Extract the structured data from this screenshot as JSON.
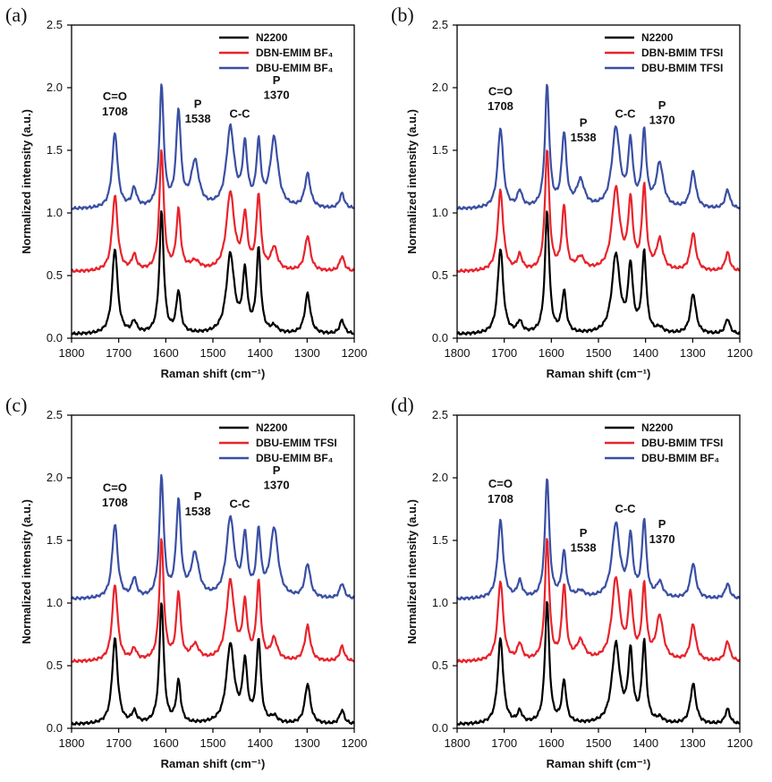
{
  "chart_data": [
    {
      "panel": "(a)",
      "type": "line",
      "xlabel": "Raman shift (cm⁻¹)",
      "ylabel": "Normalized intensity (a.u.)",
      "xlim": [
        1800,
        1200
      ],
      "ylim": [
        0,
        2.5
      ],
      "xticks": [
        1800,
        1700,
        1600,
        1500,
        1400,
        1300,
        1200
      ],
      "yticks": [
        0.0,
        0.5,
        1.0,
        1.5,
        2.0,
        2.5
      ],
      "legend_position": "top-right",
      "series": [
        {
          "name": "N2200",
          "color": "#000000",
          "offset": 0.0,
          "baseline": 0.03,
          "peaks": [
            [
              1708,
              0.68,
              7
            ],
            [
              1667,
              0.09,
              6
            ],
            [
              1609,
              0.97,
              5.5
            ],
            [
              1573,
              0.33,
              5.5
            ],
            [
              1463,
              0.63,
              10
            ],
            [
              1432,
              0.47,
              6
            ],
            [
              1403,
              0.66,
              5.5
            ],
            [
              1370,
              0.05,
              8
            ],
            [
              1299,
              0.32,
              7
            ],
            [
              1226,
              0.11,
              6
            ]
          ]
        },
        {
          "name": "DBN-EMIM BF4",
          "color": "#e8232b",
          "offset": 0.5,
          "baseline": 0.03,
          "peaks": [
            [
              1708,
              0.6,
              7
            ],
            [
              1667,
              0.12,
              6
            ],
            [
              1609,
              0.96,
              5.5
            ],
            [
              1573,
              0.47,
              5.5
            ],
            [
              1538,
              0.07,
              12
            ],
            [
              1463,
              0.62,
              10
            ],
            [
              1432,
              0.42,
              6
            ],
            [
              1403,
              0.59,
              5.5
            ],
            [
              1370,
              0.18,
              8
            ],
            [
              1299,
              0.28,
              7
            ],
            [
              1226,
              0.12,
              6
            ]
          ]
        },
        {
          "name": "DBU-EMIM BF4",
          "color": "#3a4fa3",
          "offset": 1.0,
          "baseline": 0.03,
          "peaks": [
            [
              1708,
              0.6,
              7
            ],
            [
              1667,
              0.15,
              6
            ],
            [
              1609,
              0.96,
              5.5
            ],
            [
              1573,
              0.75,
              6
            ],
            [
              1538,
              0.36,
              10
            ],
            [
              1463,
              0.63,
              10
            ],
            [
              1432,
              0.47,
              6
            ],
            [
              1403,
              0.49,
              5.5
            ],
            [
              1370,
              0.55,
              10
            ],
            [
              1299,
              0.27,
              7
            ],
            [
              1226,
              0.12,
              6
            ]
          ]
        }
      ],
      "legend": [
        "N2200",
        "DBN-EMIM BF₄",
        "DBU-EMIM BF₄"
      ],
      "annotations": {
        "co_label": "C=O",
        "co_value": "1708",
        "p1_label": "P",
        "p1_value": "1538",
        "cc_label": "C-C",
        "p2_label": "P",
        "p2_value": "1370"
      }
    },
    {
      "panel": "(b)",
      "type": "line",
      "xlabel": "Raman shift (cm⁻¹)",
      "ylabel": "Normalized intensity (a.u.)",
      "xlim": [
        1800,
        1200
      ],
      "ylim": [
        0,
        2.5
      ],
      "xticks": [
        1800,
        1700,
        1600,
        1500,
        1400,
        1300,
        1200
      ],
      "yticks": [
        0.0,
        0.5,
        1.0,
        1.5,
        2.0,
        2.5
      ],
      "legend_position": "top-right",
      "series": [
        {
          "name": "N2200",
          "color": "#000000",
          "offset": 0.0,
          "baseline": 0.03,
          "peaks": [
            [
              1708,
              0.68,
              7
            ],
            [
              1667,
              0.09,
              6
            ],
            [
              1609,
              0.97,
              5.5
            ],
            [
              1573,
              0.33,
              5.5
            ],
            [
              1463,
              0.63,
              10
            ],
            [
              1432,
              0.52,
              6
            ],
            [
              1403,
              0.64,
              5.5
            ],
            [
              1370,
              0.04,
              8
            ],
            [
              1299,
              0.32,
              7
            ],
            [
              1226,
              0.12,
              6
            ]
          ]
        },
        {
          "name": "DBN-BMIM TFSI",
          "color": "#e8232b",
          "offset": 0.5,
          "baseline": 0.03,
          "peaks": [
            [
              1708,
              0.64,
              7
            ],
            [
              1667,
              0.12,
              6
            ],
            [
              1609,
              0.96,
              5.5
            ],
            [
              1573,
              0.5,
              5.5
            ],
            [
              1538,
              0.1,
              10
            ],
            [
              1463,
              0.65,
              10
            ],
            [
              1432,
              0.53,
              6
            ],
            [
              1403,
              0.66,
              5.5
            ],
            [
              1370,
              0.24,
              8
            ],
            [
              1299,
              0.3,
              7
            ],
            [
              1226,
              0.15,
              6
            ]
          ]
        },
        {
          "name": "DBU-BMIM TFSI",
          "color": "#3a4fa3",
          "offset": 1.0,
          "baseline": 0.03,
          "peaks": [
            [
              1708,
              0.64,
              7
            ],
            [
              1667,
              0.13,
              6
            ],
            [
              1609,
              0.97,
              5.5
            ],
            [
              1573,
              0.58,
              6
            ],
            [
              1538,
              0.21,
              10
            ],
            [
              1463,
              0.63,
              10
            ],
            [
              1432,
              0.5,
              6
            ],
            [
              1403,
              0.59,
              5.5
            ],
            [
              1370,
              0.35,
              9
            ],
            [
              1299,
              0.29,
              7
            ],
            [
              1226,
              0.15,
              6
            ]
          ]
        }
      ],
      "legend": [
        "N2200",
        "DBN-BMIM TFSI",
        "DBU-BMIM TFSI"
      ],
      "annotations": {
        "co_label": "C=O",
        "co_value": "1708",
        "p1_label": "P",
        "p1_value": "1538",
        "cc_label": "C-C",
        "p2_label": "P",
        "p2_value": "1370"
      }
    },
    {
      "panel": "(c)",
      "type": "line",
      "xlabel": "Raman shift (cm⁻¹)",
      "ylabel": "Normalized intensity (a.u.)",
      "xlim": [
        1800,
        1200
      ],
      "ylim": [
        0,
        2.5
      ],
      "xticks": [
        1800,
        1700,
        1600,
        1500,
        1400,
        1300,
        1200
      ],
      "yticks": [
        0.0,
        0.5,
        1.0,
        1.5,
        2.0,
        2.5
      ],
      "legend_position": "top-right",
      "series": [
        {
          "name": "N2200",
          "color": "#000000",
          "offset": 0.0,
          "baseline": 0.03,
          "peaks": [
            [
              1708,
              0.68,
              7
            ],
            [
              1667,
              0.09,
              6
            ],
            [
              1609,
              0.97,
              5.5
            ],
            [
              1573,
              0.33,
              5.5
            ],
            [
              1463,
              0.63,
              10
            ],
            [
              1432,
              0.47,
              6
            ],
            [
              1403,
              0.66,
              5.5
            ],
            [
              1370,
              0.05,
              8
            ],
            [
              1299,
              0.32,
              7
            ],
            [
              1226,
              0.11,
              6
            ]
          ]
        },
        {
          "name": "DBU-EMIM TFSI",
          "color": "#e8232b",
          "offset": 0.5,
          "baseline": 0.03,
          "peaks": [
            [
              1708,
              0.61,
              7
            ],
            [
              1667,
              0.09,
              6
            ],
            [
              1609,
              0.96,
              5.5
            ],
            [
              1573,
              0.53,
              5.5
            ],
            [
              1538,
              0.12,
              10
            ],
            [
              1463,
              0.63,
              10
            ],
            [
              1432,
              0.43,
              6
            ],
            [
              1403,
              0.61,
              5.5
            ],
            [
              1370,
              0.17,
              8
            ],
            [
              1299,
              0.28,
              7
            ],
            [
              1226,
              0.12,
              6
            ]
          ]
        },
        {
          "name": "DBU-EMIM BF4",
          "color": "#3a4fa3",
          "offset": 1.0,
          "baseline": 0.03,
          "peaks": [
            [
              1708,
              0.59,
              7
            ],
            [
              1667,
              0.15,
              6
            ],
            [
              1609,
              0.96,
              5.5
            ],
            [
              1573,
              0.75,
              6
            ],
            [
              1538,
              0.34,
              10
            ],
            [
              1463,
              0.63,
              10
            ],
            [
              1432,
              0.47,
              6
            ],
            [
              1403,
              0.5,
              5.5
            ],
            [
              1370,
              0.55,
              10
            ],
            [
              1299,
              0.27,
              7
            ],
            [
              1226,
              0.12,
              6
            ]
          ]
        }
      ],
      "legend": [
        "N2200",
        "DBU-EMIM TFSI",
        "DBU-EMIM BF₄"
      ],
      "annotations": {
        "co_label": "C=O",
        "co_value": "1708",
        "p1_label": "P",
        "p1_value": "1538",
        "cc_label": "C-C",
        "p2_label": "P",
        "p2_value": "1370"
      }
    },
    {
      "panel": "(d)",
      "type": "line",
      "xlabel": "Raman shift (cm⁻¹)",
      "ylabel": "Normalized intensity (a.u.)",
      "xlim": [
        1800,
        1200
      ],
      "ylim": [
        0,
        2.5
      ],
      "xticks": [
        1800,
        1700,
        1600,
        1500,
        1400,
        1300,
        1200
      ],
      "yticks": [
        0.0,
        0.5,
        1.0,
        1.5,
        2.0,
        2.5
      ],
      "legend_position": "top-right",
      "series": [
        {
          "name": "N2200",
          "color": "#000000",
          "offset": 0.0,
          "baseline": 0.03,
          "peaks": [
            [
              1708,
              0.68,
              7
            ],
            [
              1667,
              0.09,
              6
            ],
            [
              1609,
              0.97,
              5.5
            ],
            [
              1573,
              0.33,
              5.5
            ],
            [
              1463,
              0.63,
              10
            ],
            [
              1432,
              0.55,
              6
            ],
            [
              1403,
              0.64,
              5.5
            ],
            [
              1370,
              0.04,
              8
            ],
            [
              1299,
              0.32,
              7
            ],
            [
              1226,
              0.12,
              6
            ]
          ]
        },
        {
          "name": "DBU-BMIM TFSI",
          "color": "#e8232b",
          "offset": 0.5,
          "baseline": 0.03,
          "peaks": [
            [
              1708,
              0.64,
              7
            ],
            [
              1667,
              0.13,
              6
            ],
            [
              1609,
              0.96,
              5.5
            ],
            [
              1573,
              0.59,
              5.5
            ],
            [
              1538,
              0.15,
              10
            ],
            [
              1463,
              0.65,
              10
            ],
            [
              1432,
              0.49,
              6
            ],
            [
              1403,
              0.58,
              5.5
            ],
            [
              1370,
              0.35,
              9
            ],
            [
              1299,
              0.29,
              7
            ],
            [
              1226,
              0.16,
              6
            ]
          ]
        },
        {
          "name": "DBU-BMIM BF4",
          "color": "#3a4fa3",
          "offset": 1.0,
          "baseline": 0.03,
          "peaks": [
            [
              1708,
              0.62,
              7
            ],
            [
              1667,
              0.13,
              6
            ],
            [
              1609,
              0.96,
              5.5
            ],
            [
              1573,
              0.36,
              5.5
            ],
            [
              1538,
              0.05,
              10
            ],
            [
              1463,
              0.59,
              10
            ],
            [
              1432,
              0.47,
              6
            ],
            [
              1403,
              0.61,
              5.5
            ],
            [
              1370,
              0.12,
              8
            ],
            [
              1299,
              0.28,
              7
            ],
            [
              1226,
              0.12,
              6
            ]
          ]
        }
      ],
      "legend": [
        "N2200",
        "DBU-BMIM TFSI",
        "DBU-BMIM BF₄"
      ],
      "annotations": {
        "co_label": "C=O",
        "co_value": "1708",
        "p1_label": "P",
        "p1_value": "1538",
        "cc_label": "C-C",
        "p2_label": "P",
        "p2_value": "1370"
      }
    }
  ]
}
